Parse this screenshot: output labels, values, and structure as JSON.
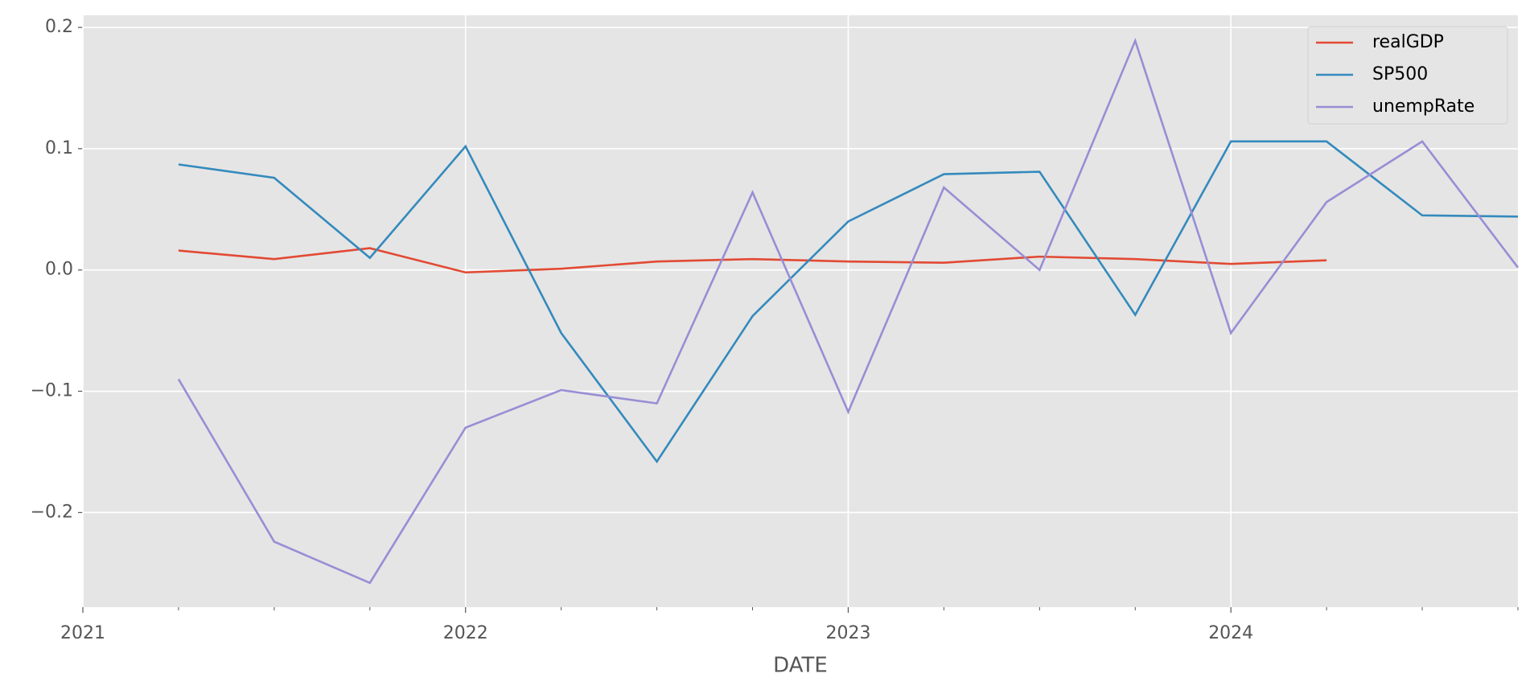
{
  "chart_data": {
    "type": "line",
    "x_label": "DATE",
    "x": [
      2021.25,
      2021.5,
      2021.75,
      2022.0,
      2022.25,
      2022.5,
      2022.75,
      2023.0,
      2023.25,
      2023.5,
      2023.75,
      2024.0,
      2024.25,
      2024.5,
      2024.75
    ],
    "series": [
      {
        "name": "realGDP",
        "color": "#E24A33",
        "values": [
          0.016,
          0.009,
          0.018,
          -0.002,
          0.001,
          0.007,
          0.009,
          0.007,
          0.006,
          0.011,
          0.009,
          0.005,
          0.008,
          null,
          null
        ]
      },
      {
        "name": "SP500",
        "color": "#348ABD",
        "values": [
          0.087,
          0.076,
          0.01,
          0.102,
          -0.052,
          -0.158,
          -0.038,
          0.04,
          0.079,
          0.081,
          -0.037,
          0.106,
          0.106,
          0.045,
          0.044
        ]
      },
      {
        "name": "unempRate",
        "color": "#988ED5",
        "values": [
          -0.09,
          -0.224,
          -0.258,
          -0.13,
          -0.099,
          -0.11,
          0.064,
          -0.117,
          0.068,
          0.0,
          0.189,
          -0.052,
          0.056,
          0.106,
          0.002
        ]
      }
    ],
    "xlim": [
      2021,
      2024.75
    ],
    "xticks": [
      2021,
      2022,
      2023,
      2024
    ],
    "ylim": [
      -0.278,
      0.21
    ],
    "yticks": [
      {
        "value": -0.2,
        "label": "−0.2"
      },
      {
        "value": -0.1,
        "label": "−0.1"
      },
      {
        "value": 0,
        "label": "0.0"
      },
      0.1,
      0.2
    ],
    "grid": true,
    "legend": "upper right"
  }
}
